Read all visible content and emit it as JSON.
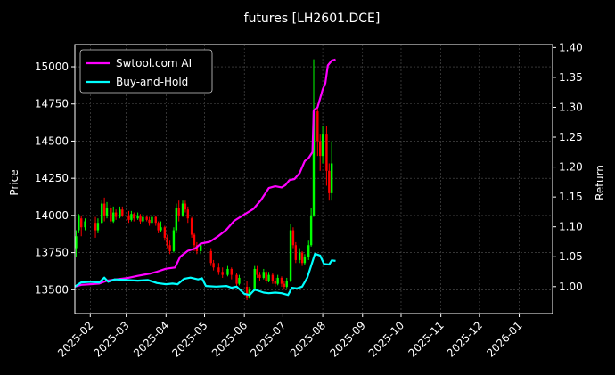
{
  "chart_data": {
    "type": "line",
    "title": "futures [LH2601.DCE]",
    "ylabel": "Price",
    "y2label": "Return",
    "grid": true,
    "legend_position": "top-left",
    "x_ticks": [
      "2025-02",
      "2025-03",
      "2025-04",
      "2025-05",
      "2025-06",
      "2025-07",
      "2025-08",
      "2025-09",
      "2025-10",
      "2025-11",
      "2025-12",
      "2026-01"
    ],
    "xlim": [
      "2025-01-20",
      "2026-01-27"
    ],
    "y_ticks": [
      13500,
      13750,
      14000,
      14250,
      14500,
      14750,
      15000
    ],
    "ylim": [
      13340,
      15150
    ],
    "y2_ticks": [
      1.0,
      1.05,
      1.1,
      1.15,
      1.2,
      1.25,
      1.3,
      1.35,
      1.4
    ],
    "y2lim": [
      0.955,
      1.405
    ],
    "colors": {
      "up": "#00ff00",
      "down": "#ff0000",
      "ai": "#ff00ff",
      "bh": "#00ffff",
      "grid": "#555555",
      "frame": "#ffffff"
    },
    "series": [
      {
        "name": "Swtool.com AI",
        "color": "#ff00ff",
        "points": [
          [
            "2025-01-20",
            1.0
          ],
          [
            "2025-01-25",
            1.003
          ],
          [
            "2025-02-01",
            1.004
          ],
          [
            "2025-02-08",
            1.005
          ],
          [
            "2025-02-14",
            1.01
          ],
          [
            "2025-02-21",
            1.012
          ],
          [
            "2025-03-01",
            1.014
          ],
          [
            "2025-03-10",
            1.018
          ],
          [
            "2025-03-20",
            1.022
          ],
          [
            "2025-03-25",
            1.025
          ],
          [
            "2025-04-01",
            1.03
          ],
          [
            "2025-04-08",
            1.032
          ],
          [
            "2025-04-12",
            1.05
          ],
          [
            "2025-04-18",
            1.06
          ],
          [
            "2025-04-24",
            1.064
          ],
          [
            "2025-04-28",
            1.072
          ],
          [
            "2025-05-05",
            1.075
          ],
          [
            "2025-05-12",
            1.085
          ],
          [
            "2025-05-18",
            1.095
          ],
          [
            "2025-05-24",
            1.11
          ],
          [
            "2025-05-30",
            1.118
          ],
          [
            "2025-06-08",
            1.13
          ],
          [
            "2025-06-14",
            1.145
          ],
          [
            "2025-06-20",
            1.165
          ],
          [
            "2025-06-25",
            1.168
          ],
          [
            "2025-06-30",
            1.166
          ],
          [
            "2025-07-03",
            1.17
          ],
          [
            "2025-07-06",
            1.178
          ],
          [
            "2025-07-10",
            1.18
          ],
          [
            "2025-07-14",
            1.19
          ],
          [
            "2025-07-18",
            1.21
          ],
          [
            "2025-07-21",
            1.215
          ],
          [
            "2025-07-24",
            1.225
          ],
          [
            "2025-07-25",
            1.295
          ],
          [
            "2025-07-28",
            1.3
          ],
          [
            "2025-08-01",
            1.33
          ],
          [
            "2025-08-03",
            1.34
          ],
          [
            "2025-08-05",
            1.37
          ],
          [
            "2025-08-08",
            1.378
          ],
          [
            "2025-08-11",
            1.38
          ]
        ]
      },
      {
        "name": "Buy-and-Hold",
        "color": "#00ffff",
        "points": [
          [
            "2025-01-20",
            1.0
          ],
          [
            "2025-01-25",
            1.007
          ],
          [
            "2025-02-01",
            1.008
          ],
          [
            "2025-02-08",
            1.007
          ],
          [
            "2025-02-12",
            1.015
          ],
          [
            "2025-02-15",
            1.008
          ],
          [
            "2025-02-20",
            1.012
          ],
          [
            "2025-03-01",
            1.011
          ],
          [
            "2025-03-10",
            1.01
          ],
          [
            "2025-03-18",
            1.011
          ],
          [
            "2025-03-25",
            1.006
          ],
          [
            "2025-04-01",
            1.004
          ],
          [
            "2025-04-06",
            1.005
          ],
          [
            "2025-04-10",
            1.004
          ],
          [
            "2025-04-15",
            1.013
          ],
          [
            "2025-04-20",
            1.015
          ],
          [
            "2025-04-26",
            1.012
          ],
          [
            "2025-04-29",
            1.014
          ],
          [
            "2025-05-02",
            1.001
          ],
          [
            "2025-05-10",
            1.0
          ],
          [
            "2025-05-18",
            1.001
          ],
          [
            "2025-05-22",
            0.998
          ],
          [
            "2025-05-26",
            1.0
          ],
          [
            "2025-06-01",
            0.988
          ],
          [
            "2025-06-05",
            0.986
          ],
          [
            "2025-06-09",
            0.995
          ],
          [
            "2025-06-12",
            0.993
          ],
          [
            "2025-06-16",
            0.99
          ],
          [
            "2025-06-20",
            0.989
          ],
          [
            "2025-06-25",
            0.99
          ],
          [
            "2025-06-30",
            0.989
          ],
          [
            "2025-07-05",
            0.986
          ],
          [
            "2025-07-08",
            0.998
          ],
          [
            "2025-07-12",
            0.997
          ],
          [
            "2025-07-16",
            1.0
          ],
          [
            "2025-07-20",
            1.015
          ],
          [
            "2025-07-23",
            1.035
          ],
          [
            "2025-07-26",
            1.055
          ],
          [
            "2025-07-30",
            1.052
          ],
          [
            "2025-08-02",
            1.038
          ],
          [
            "2025-08-06",
            1.037
          ],
          [
            "2025-08-08",
            1.044
          ],
          [
            "2025-08-11",
            1.043
          ]
        ]
      }
    ],
    "price_candles": [
      [
        "2025-01-21",
        13780,
        13860,
        13720,
        13900,
        "up"
      ],
      [
        "2025-01-23",
        13900,
        14000,
        13880,
        14010,
        "up"
      ],
      [
        "2025-01-25",
        13980,
        13920,
        13860,
        14000,
        "down"
      ],
      [
        "2025-01-28",
        13920,
        13960,
        13900,
        13980,
        "up"
      ],
      [
        "2025-02-05",
        13950,
        13900,
        13850,
        13990,
        "down"
      ],
      [
        "2025-02-07",
        13900,
        13950,
        13880,
        13980,
        "up"
      ],
      [
        "2025-02-10",
        13950,
        14080,
        13940,
        14100,
        "up"
      ],
      [
        "2025-02-12",
        14080,
        14000,
        13960,
        14120,
        "down"
      ],
      [
        "2025-02-14",
        14000,
        14050,
        13980,
        14090,
        "up"
      ],
      [
        "2025-02-17",
        14050,
        13960,
        13940,
        14070,
        "down"
      ],
      [
        "2025-02-19",
        13960,
        14020,
        13950,
        14060,
        "up"
      ],
      [
        "2025-02-21",
        14020,
        13990,
        13970,
        14040,
        "down"
      ],
      [
        "2025-02-24",
        13990,
        14040,
        13980,
        14060,
        "up"
      ],
      [
        "2025-02-26",
        14040,
        14000,
        13990,
        14060,
        "down"
      ],
      [
        "2025-03-03",
        14000,
        13970,
        13950,
        14030,
        "down"
      ],
      [
        "2025-03-05",
        13970,
        14010,
        13960,
        14030,
        "up"
      ],
      [
        "2025-03-07",
        14010,
        13980,
        13960,
        14020,
        "down"
      ],
      [
        "2025-03-10",
        13980,
        14000,
        13970,
        14020,
        "up"
      ],
      [
        "2025-03-12",
        14000,
        13960,
        13940,
        14010,
        "down"
      ],
      [
        "2025-03-14",
        13960,
        13990,
        13950,
        14010,
        "up"
      ],
      [
        "2025-03-17",
        13990,
        13970,
        13960,
        14000,
        "down"
      ],
      [
        "2025-03-19",
        13970,
        13950,
        13930,
        13990,
        "down"
      ],
      [
        "2025-03-21",
        13950,
        13990,
        13940,
        14000,
        "up"
      ],
      [
        "2025-03-24",
        13990,
        13950,
        13930,
        14000,
        "down"
      ],
      [
        "2025-03-26",
        13950,
        13900,
        13880,
        13960,
        "down"
      ],
      [
        "2025-03-28",
        13900,
        13920,
        13890,
        13960,
        "up"
      ],
      [
        "2025-03-31",
        13920,
        13850,
        13830,
        13930,
        "down"
      ],
      [
        "2025-04-02",
        13850,
        13800,
        13780,
        13870,
        "down"
      ],
      [
        "2025-04-04",
        13800,
        13760,
        13740,
        13830,
        "down"
      ],
      [
        "2025-04-07",
        13760,
        13900,
        13750,
        13920,
        "up"
      ],
      [
        "2025-04-09",
        13900,
        14050,
        13880,
        14080,
        "up"
      ],
      [
        "2025-04-11",
        14050,
        14000,
        13960,
        14100,
        "down"
      ],
      [
        "2025-04-14",
        14000,
        14080,
        13990,
        14100,
        "up"
      ],
      [
        "2025-04-16",
        14080,
        14040,
        14020,
        14100,
        "down"
      ],
      [
        "2025-04-18",
        14040,
        13980,
        13950,
        14060,
        "down"
      ],
      [
        "2025-04-21",
        13980,
        13870,
        13850,
        13990,
        "down"
      ],
      [
        "2025-04-23",
        13870,
        13800,
        13760,
        13880,
        "down"
      ],
      [
        "2025-04-25",
        13800,
        13760,
        13740,
        13820,
        "down"
      ],
      [
        "2025-04-28",
        13760,
        13800,
        13740,
        13820,
        "up"
      ],
      [
        "2025-05-06",
        13760,
        13680,
        13660,
        13780,
        "down"
      ],
      [
        "2025-05-08",
        13680,
        13650,
        13630,
        13700,
        "down"
      ],
      [
        "2025-05-12",
        13650,
        13620,
        13600,
        13680,
        "down"
      ],
      [
        "2025-05-15",
        13620,
        13600,
        13580,
        13650,
        "down"
      ],
      [
        "2025-05-19",
        13600,
        13640,
        13590,
        13660,
        "up"
      ],
      [
        "2025-05-22",
        13640,
        13600,
        13570,
        13650,
        "down"
      ],
      [
        "2025-05-26",
        13600,
        13540,
        13520,
        13610,
        "down"
      ],
      [
        "2025-05-28",
        13540,
        13580,
        13530,
        13600,
        "up"
      ],
      [
        "2025-06-03",
        13520,
        13450,
        13430,
        13560,
        "down"
      ],
      [
        "2025-06-05",
        13450,
        13500,
        13440,
        13520,
        "up"
      ],
      [
        "2025-06-09",
        13500,
        13640,
        13490,
        13660,
        "up"
      ],
      [
        "2025-06-11",
        13640,
        13600,
        13580,
        13660,
        "down"
      ],
      [
        "2025-06-13",
        13600,
        13580,
        13560,
        13620,
        "down"
      ],
      [
        "2025-06-16",
        13580,
        13620,
        13570,
        13640,
        "up"
      ],
      [
        "2025-06-18",
        13620,
        13560,
        13540,
        13630,
        "down"
      ],
      [
        "2025-06-20",
        13560,
        13600,
        13550,
        13620,
        "up"
      ],
      [
        "2025-06-23",
        13600,
        13560,
        13540,
        13610,
        "down"
      ],
      [
        "2025-06-25",
        13560,
        13540,
        13520,
        13580,
        "down"
      ],
      [
        "2025-06-27",
        13540,
        13580,
        13530,
        13600,
        "up"
      ],
      [
        "2025-06-30",
        13580,
        13540,
        13520,
        13590,
        "down"
      ],
      [
        "2025-07-02",
        13540,
        13520,
        13500,
        13560,
        "down"
      ],
      [
        "2025-07-04",
        13520,
        13560,
        13510,
        13580,
        "up"
      ],
      [
        "2025-07-07",
        13560,
        13900,
        13550,
        13940,
        "up"
      ],
      [
        "2025-07-09",
        13900,
        13800,
        13780,
        13920,
        "down"
      ],
      [
        "2025-07-11",
        13800,
        13700,
        13680,
        13820,
        "down"
      ],
      [
        "2025-07-14",
        13700,
        13750,
        13680,
        13780,
        "up"
      ],
      [
        "2025-07-16",
        13750,
        13680,
        13660,
        13760,
        "down"
      ],
      [
        "2025-07-18",
        13680,
        13720,
        13670,
        13740,
        "up"
      ],
      [
        "2025-07-21",
        13720,
        13800,
        13700,
        13830,
        "up"
      ],
      [
        "2025-07-23",
        13800,
        14000,
        13790,
        14050,
        "up"
      ],
      [
        "2025-07-25",
        14000,
        14700,
        13990,
        15050,
        "up"
      ],
      [
        "2025-07-28",
        14700,
        14500,
        14400,
        14750,
        "down"
      ],
      [
        "2025-07-30",
        14500,
        14400,
        14300,
        14550,
        "down"
      ],
      [
        "2025-08-01",
        14400,
        14550,
        14350,
        14600,
        "up"
      ],
      [
        "2025-08-04",
        14550,
        14300,
        14200,
        14600,
        "down"
      ],
      [
        "2025-08-06",
        14300,
        14150,
        14100,
        14350,
        "down"
      ],
      [
        "2025-08-08",
        14150,
        14350,
        14100,
        14500,
        "up"
      ]
    ]
  }
}
